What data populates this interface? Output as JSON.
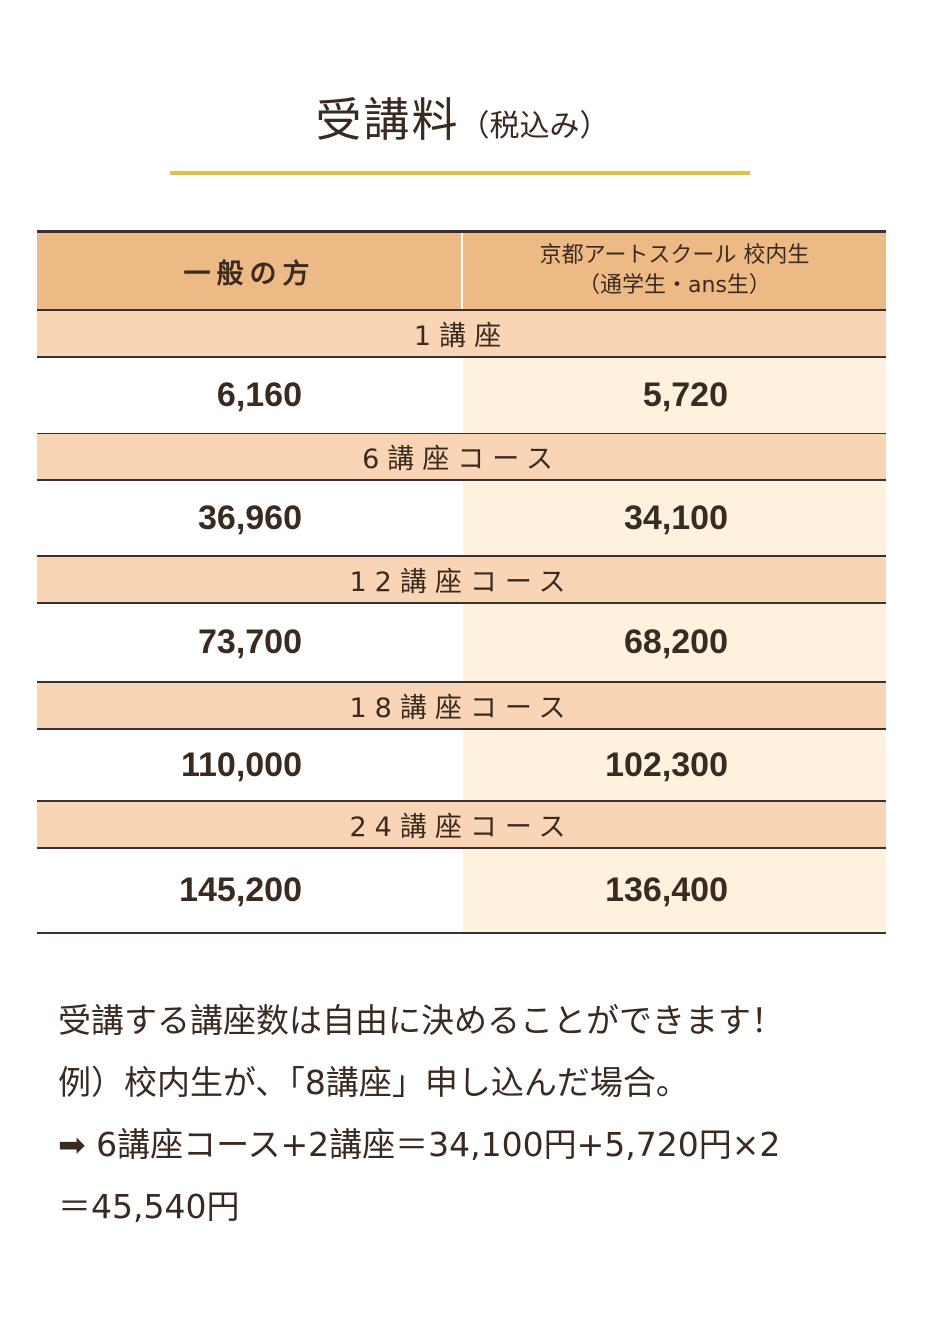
{
  "title": {
    "main": "受講料",
    "sub": "（税込み）"
  },
  "colors": {
    "accent_line": "#e2c04c",
    "header_bg": "#edba86",
    "section_bg": "#f9d5b5",
    "member_bg": "#fef2df",
    "text": "#3a2a20"
  },
  "table": {
    "headers": {
      "general": "一般の方",
      "member_line1": "京都アートスクール 校内生",
      "member_line2": "（通学生・ans生）"
    },
    "rows": [
      {
        "course": "1講座",
        "general": "6,160",
        "member": "5,720"
      },
      {
        "course": "6講座コース",
        "general": "36,960",
        "member": "34,100"
      },
      {
        "course": "12講座コース",
        "general": "73,700",
        "member": "68,200"
      },
      {
        "course": "18講座コース",
        "general": "110,000",
        "member": "102,300"
      },
      {
        "course": "24講座コース",
        "general": "145,200",
        "member": "136,400"
      }
    ]
  },
  "notes": {
    "line1": "受講する講座数は自由に決めることができます！",
    "line2": "例）校内生が、「8講座」申し込んだ場合。",
    "line3_icon": "arrow-right-icon",
    "line3": "6講座コース+2講座＝34,100円+5,720円×2",
    "line4": "＝45,540円"
  }
}
